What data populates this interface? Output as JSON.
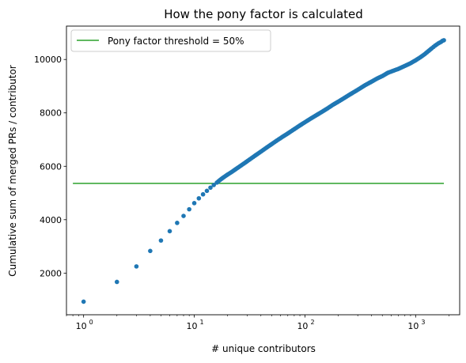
{
  "chart_data": {
    "type": "scatter",
    "title": "How the pony factor is calculated",
    "xlabel": "# unique contributors",
    "ylabel": "Cumulative sum of merged PRs / contributor",
    "x_scale": "log",
    "xlim": [
      0.7,
      2500
    ],
    "ylim": [
      440,
      11250
    ],
    "x_ticks": [
      {
        "value": 1,
        "base": "10",
        "exp": "0"
      },
      {
        "value": 10,
        "base": "10",
        "exp": "1"
      },
      {
        "value": 100,
        "base": "10",
        "exp": "2"
      },
      {
        "value": 1000,
        "base": "10",
        "exp": "3"
      }
    ],
    "y_ticks": [
      {
        "value": 2000,
        "label": "2000"
      },
      {
        "value": 4000,
        "label": "4000"
      },
      {
        "value": 6000,
        "label": "6000"
      },
      {
        "value": 8000,
        "label": "8000"
      },
      {
        "value": 10000,
        "label": "10000"
      }
    ],
    "grid": false,
    "legend_position": "top-left",
    "colors": {
      "points": "#1f77b4",
      "threshold": "#2ca02c"
    },
    "series": [
      {
        "name": "",
        "points": [
          [
            1,
            930
          ],
          [
            2,
            1670
          ],
          [
            3,
            2250
          ],
          [
            4,
            2830
          ],
          [
            5,
            3220
          ],
          [
            6,
            3570
          ],
          [
            7,
            3880
          ],
          [
            8,
            4140
          ],
          [
            9,
            4390
          ],
          [
            10,
            4620
          ],
          [
            11,
            4800
          ],
          [
            12,
            4950
          ],
          [
            13,
            5080
          ],
          [
            14,
            5200
          ],
          [
            15,
            5300
          ],
          [
            16,
            5390
          ],
          [
            17,
            5480
          ],
          [
            18,
            5560
          ],
          [
            20,
            5690
          ],
          [
            22,
            5800
          ],
          [
            25,
            5960
          ],
          [
            28,
            6100
          ],
          [
            32,
            6270
          ],
          [
            36,
            6420
          ],
          [
            40,
            6550
          ],
          [
            45,
            6700
          ],
          [
            50,
            6830
          ],
          [
            56,
            6970
          ],
          [
            63,
            7110
          ],
          [
            70,
            7230
          ],
          [
            80,
            7390
          ],
          [
            90,
            7530
          ],
          [
            100,
            7650
          ],
          [
            112,
            7780
          ],
          [
            125,
            7900
          ],
          [
            140,
            8020
          ],
          [
            160,
            8170
          ],
          [
            180,
            8310
          ],
          [
            200,
            8420
          ],
          [
            225,
            8550
          ],
          [
            250,
            8670
          ],
          [
            280,
            8790
          ],
          [
            315,
            8920
          ],
          [
            350,
            9040
          ],
          [
            400,
            9170
          ],
          [
            450,
            9290
          ],
          [
            500,
            9380
          ],
          [
            560,
            9500
          ],
          [
            630,
            9580
          ],
          [
            700,
            9650
          ],
          [
            800,
            9760
          ],
          [
            900,
            9860
          ],
          [
            1000,
            9970
          ],
          [
            1100,
            10080
          ],
          [
            1200,
            10190
          ],
          [
            1300,
            10310
          ],
          [
            1400,
            10420
          ],
          [
            1500,
            10520
          ],
          [
            1600,
            10600
          ],
          [
            1700,
            10660
          ],
          [
            1750,
            10700
          ],
          [
            1800,
            10720
          ]
        ]
      },
      {
        "name": "Pony factor threshold = 50%",
        "type": "hline",
        "y": 5360,
        "x_range": [
          0.8,
          1800
        ]
      }
    ]
  }
}
